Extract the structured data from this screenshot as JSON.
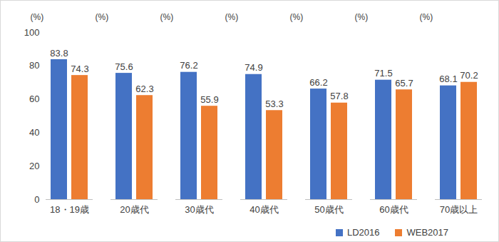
{
  "chart_data": {
    "type": "bar",
    "y_label": "(%)",
    "categories": [
      "18・19歳",
      "20歳代",
      "30歳代",
      "40歳代",
      "50歳代",
      "60歳代",
      "70歳以上"
    ],
    "series": [
      {
        "name": "LD2016",
        "color": "#4472c4",
        "values": [
          83.8,
          75.6,
          76.2,
          74.9,
          66.2,
          71.5,
          68.1
        ]
      },
      {
        "name": "WEB2017",
        "color": "#ed7d31",
        "values": [
          74.3,
          62.3,
          55.9,
          53.3,
          57.8,
          65.7,
          70.2
        ]
      }
    ],
    "ylim": [
      0,
      100
    ],
    "yticks": [
      0,
      20,
      40,
      60,
      80,
      100
    ],
    "grid": false,
    "legend": "bottom-right",
    "data_labels": true
  }
}
